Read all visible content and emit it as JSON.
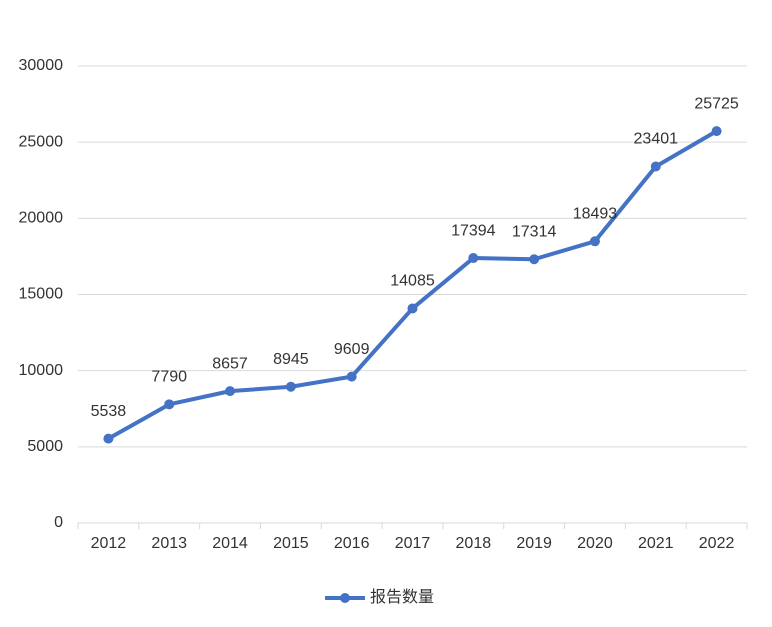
{
  "chart_data": {
    "type": "line",
    "categories": [
      "2012",
      "2013",
      "2014",
      "2015",
      "2016",
      "2017",
      "2018",
      "2019",
      "2020",
      "2021",
      "2022"
    ],
    "series": [
      {
        "name": "报告数量",
        "color": "#4472c4",
        "values": [
          5538,
          7790,
          8657,
          8945,
          9609,
          14085,
          17394,
          17314,
          18493,
          23401,
          25725
        ]
      }
    ],
    "ylim": [
      0,
      30000
    ],
    "yticks": [
      0,
      5000,
      10000,
      15000,
      20000,
      25000,
      30000
    ],
    "grid": true,
    "legend": "bottom",
    "data_labels": true
  }
}
